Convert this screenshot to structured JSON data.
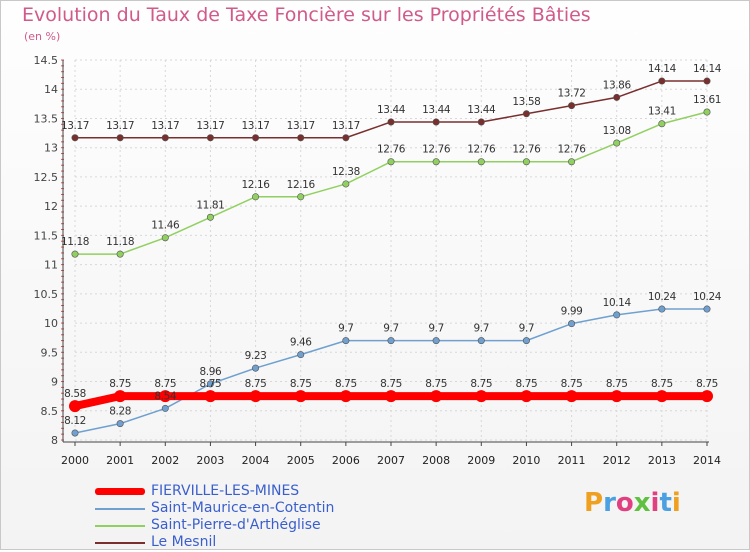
{
  "header": {
    "title": "Evolution du Taux de Taxe Foncière sur les Propriétés Bâties",
    "unit": "(en %)"
  },
  "brand": {
    "logo_text": "Proxiti",
    "letter_colors": [
      "#f0a020",
      "#4aa0e0",
      "#e04080",
      "#60c040",
      "#e04080",
      "#4aa0e0",
      "#f0a020"
    ]
  },
  "chart_data": {
    "type": "line",
    "title": "Evolution du Taux de Taxe Foncière sur les Propriétés Bâties",
    "ylabel": "(en %)",
    "xlabel": "",
    "x": [
      "2000",
      "2001",
      "2002",
      "2003",
      "2004",
      "2005",
      "2006",
      "2007",
      "2008",
      "2009",
      "2010",
      "2011",
      "2012",
      "2013",
      "2014"
    ],
    "ylim": [
      8,
      14.5
    ],
    "yticks": [
      "8",
      "8.5",
      "9",
      "9.5",
      "10",
      "10.5",
      "11",
      "11.5",
      "12",
      "12.5",
      "13",
      "13.5",
      "14",
      "14.5"
    ],
    "grid": true,
    "legend_position": "bottom-left",
    "series": [
      {
        "name": "Le Mesnil",
        "color": "#7a2f2f",
        "values": [
          13.17,
          13.17,
          13.17,
          13.17,
          13.17,
          13.17,
          13.17,
          13.44,
          13.44,
          13.44,
          13.58,
          13.72,
          13.86,
          14.14,
          14.14
        ],
        "labels": [
          "13.17",
          "13.17",
          "13.17",
          "13.17",
          "13.17",
          "13.17",
          "13.17",
          "13.44",
          "13.44",
          "13.44",
          "13.58",
          "13.72",
          "13.86",
          "14.14",
          "14.14"
        ]
      },
      {
        "name": "Saint-Pierre-d'Arthéglise",
        "color": "#90d060",
        "values": [
          11.18,
          11.18,
          11.46,
          11.81,
          12.16,
          12.16,
          12.38,
          12.76,
          12.76,
          12.76,
          12.76,
          12.76,
          13.08,
          13.41,
          13.61
        ],
        "labels": [
          "11.18",
          "11.18",
          "11.46",
          "11.81",
          "12.16",
          "12.16",
          "12.38",
          "12.76",
          "12.76",
          "12.76",
          "12.76",
          "12.76",
          "13.08",
          "13.41",
          "13.61"
        ]
      },
      {
        "name": "Saint-Maurice-en-Cotentin",
        "color": "#6fa0d0",
        "values": [
          8.12,
          8.28,
          8.54,
          8.96,
          9.23,
          9.46,
          9.7,
          9.7,
          9.7,
          9.7,
          9.7,
          9.99,
          10.14,
          10.24,
          10.24
        ],
        "labels": [
          "8.12",
          "8.28",
          "8.54",
          "8.96",
          "9.23",
          "9.46",
          "9.7",
          "9.7",
          "9.7",
          "9.7",
          "9.7",
          "9.99",
          "10.14",
          "10.24",
          "10.24"
        ]
      },
      {
        "name": "FIERVILLE-LES-MINES",
        "color": "#ff0000",
        "values": [
          8.58,
          8.75,
          8.75,
          8.75,
          8.75,
          8.75,
          8.75,
          8.75,
          8.75,
          8.75,
          8.75,
          8.75,
          8.75,
          8.75,
          8.75
        ],
        "labels": [
          "8.58",
          "8.75",
          "8.75",
          "8.75",
          "8.75",
          "8.75",
          "8.75",
          "8.75",
          "8.75",
          "8.75",
          "8.75",
          "8.75",
          "8.75",
          "8.75",
          "8.75"
        ]
      }
    ],
    "legend_order": [
      "FIERVILLE-LES-MINES",
      "Saint-Maurice-en-Cotentin",
      "Saint-Pierre-d'Arthéglise",
      "Le Mesnil"
    ]
  }
}
